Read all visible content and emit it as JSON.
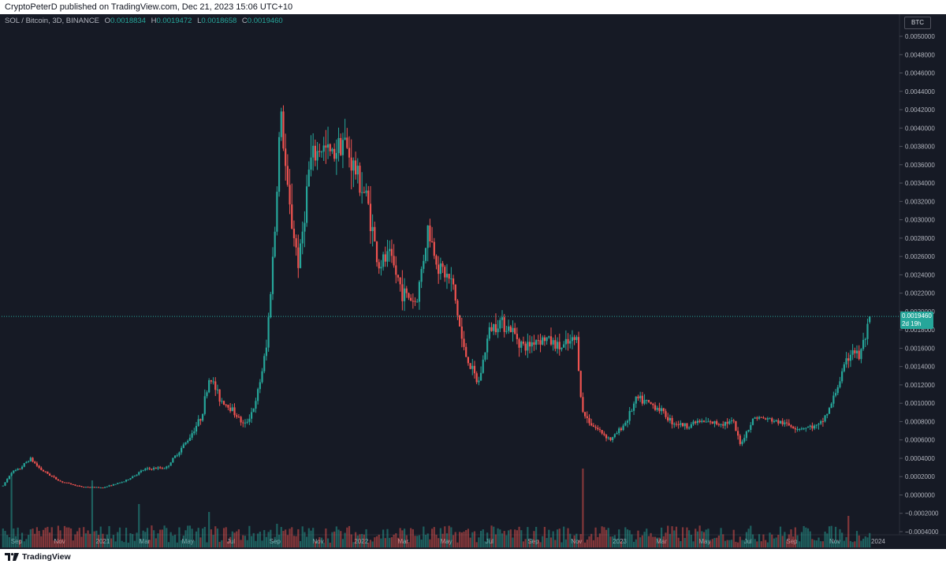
{
  "publisher_line": "CryptoPeterD published on TradingView.com, Dec 21, 2023 15:06 UTC+10",
  "legend": {
    "symbol": "SOL / Bitcoin, 3D, BINANCE",
    "open_label": "O",
    "open": "0.0018834",
    "high_label": "H",
    "high": "0.0019472",
    "low_label": "L",
    "low": "0.0018658",
    "close_label": "C",
    "close": "0.0019460"
  },
  "currency_label": "BTC",
  "price_tag": {
    "price": "0.0019460",
    "countdown": "2d 19h"
  },
  "footer_brand": "TradingView",
  "colors": {
    "up": "#26a69a",
    "down": "#ef5350",
    "background": "#161a25",
    "text": "#b2b5be"
  },
  "icons": {
    "brand": "tradingview-logo-icon"
  },
  "chart_data": {
    "type": "candlestick",
    "title": "SOL / Bitcoin, 3D, BINANCE",
    "y_ticks": [
      "0.0050000",
      "0.0048000",
      "0.0046000",
      "0.0044000",
      "0.0042000",
      "0.0040000",
      "0.0038000",
      "0.0036000",
      "0.0034000",
      "0.0032000",
      "0.0030000",
      "0.0028000",
      "0.0026000",
      "0.0024000",
      "0.0022000",
      "0.0020000",
      "0.0018000",
      "0.0016000",
      "0.0014000",
      "0.0012000",
      "0.0010000",
      "0.0008000",
      "0.0006000",
      "0.0004000",
      "0.0002000",
      "0.0000000",
      "−0.0002000",
      "−0.0004000"
    ],
    "y_tick_values": [
      0.005,
      0.0048,
      0.0046,
      0.0044,
      0.0042,
      0.004,
      0.0038,
      0.0036,
      0.0034,
      0.0032,
      0.003,
      0.0028,
      0.0026,
      0.0024,
      0.0022,
      0.002,
      0.0018,
      0.0016,
      0.0014,
      0.0012,
      0.001,
      0.0008,
      0.0006,
      0.0004,
      0.0002,
      0,
      -0.0002,
      -0.0004
    ],
    "ylim": [
      -0.0004,
      0.005
    ],
    "x_ticks": [
      "Sep",
      "Nov",
      "2021",
      "Mar",
      "May",
      "Jul",
      "Sep",
      "Nov",
      "2022",
      "Mar",
      "May",
      "Jul",
      "Sep",
      "Nov",
      "2023",
      "Mar",
      "May",
      "Jul",
      "Sep",
      "Nov",
      "2024"
    ],
    "x_tick_dates": [
      "2020-09-01",
      "2020-11-01",
      "2021-01-01",
      "2021-03-01",
      "2021-05-01",
      "2021-07-01",
      "2021-09-01",
      "2021-11-01",
      "2022-01-01",
      "2022-03-01",
      "2022-05-01",
      "2022-07-01",
      "2022-09-01",
      "2022-11-01",
      "2023-01-01",
      "2023-03-01",
      "2023-05-01",
      "2023-07-01",
      "2023-09-01",
      "2023-11-01",
      "2024-01-01"
    ],
    "price_keypoints": [
      [
        "2020-08-13",
        0.0001
      ],
      [
        "2020-08-25",
        0.00025
      ],
      [
        "2020-09-05",
        0.00028
      ],
      [
        "2020-09-20",
        0.0004
      ],
      [
        "2020-10-05",
        0.00028
      ],
      [
        "2020-11-01",
        0.00015
      ],
      [
        "2020-12-01",
        9e-05
      ],
      [
        "2021-01-01",
        8e-05
      ],
      [
        "2021-02-01",
        0.00015
      ],
      [
        "2021-03-01",
        0.00028
      ],
      [
        "2021-04-01",
        0.0003
      ],
      [
        "2021-05-01",
        0.0006
      ],
      [
        "2021-05-20",
        0.00085
      ],
      [
        "2021-06-01",
        0.0013
      ],
      [
        "2021-06-15",
        0.00105
      ],
      [
        "2021-07-01",
        0.00095
      ],
      [
        "2021-07-20",
        0.00075
      ],
      [
        "2021-08-05",
        0.001
      ],
      [
        "2021-08-20",
        0.0016
      ],
      [
        "2021-09-01",
        0.0029
      ],
      [
        "2021-09-09",
        0.0042
      ],
      [
        "2021-09-20",
        0.0032
      ],
      [
        "2021-10-05",
        0.0025
      ],
      [
        "2021-10-20",
        0.0036
      ],
      [
        "2021-11-05",
        0.0038
      ],
      [
        "2021-11-20",
        0.0037
      ],
      [
        "2021-12-05",
        0.0039
      ],
      [
        "2021-12-20",
        0.0036
      ],
      [
        "2022-01-10",
        0.0032
      ],
      [
        "2022-01-25",
        0.0025
      ],
      [
        "2022-02-10",
        0.0026
      ],
      [
        "2022-03-01",
        0.0022
      ],
      [
        "2022-03-20",
        0.0021
      ],
      [
        "2022-04-05",
        0.0029
      ],
      [
        "2022-04-20",
        0.0025
      ],
      [
        "2022-05-10",
        0.0023
      ],
      [
        "2022-05-25",
        0.0016
      ],
      [
        "2022-06-15",
        0.0012
      ],
      [
        "2022-07-01",
        0.0018
      ],
      [
        "2022-07-15",
        0.0019
      ],
      [
        "2022-08-01",
        0.0018
      ],
      [
        "2022-08-20",
        0.0016
      ],
      [
        "2022-09-05",
        0.0017
      ],
      [
        "2022-09-20",
        0.0017
      ],
      [
        "2022-10-10",
        0.0016
      ],
      [
        "2022-11-01",
        0.0017
      ],
      [
        "2022-11-09",
        0.0009
      ],
      [
        "2022-11-25",
        0.00075
      ],
      [
        "2022-12-20",
        0.0006
      ],
      [
        "2023-01-10",
        0.0008
      ],
      [
        "2023-01-25",
        0.00105
      ],
      [
        "2023-02-10",
        0.001
      ],
      [
        "2023-02-25",
        0.00095
      ],
      [
        "2023-03-15",
        0.0008
      ],
      [
        "2023-04-05",
        0.00075
      ],
      [
        "2023-04-20",
        0.0008
      ],
      [
        "2023-05-20",
        0.00078
      ],
      [
        "2023-06-10",
        0.0008
      ],
      [
        "2023-06-20",
        0.00055
      ],
      [
        "2023-07-10",
        0.00085
      ],
      [
        "2023-08-01",
        0.00082
      ],
      [
        "2023-08-20",
        0.00078
      ],
      [
        "2023-09-10",
        0.00073
      ],
      [
        "2023-10-10",
        0.00075
      ],
      [
        "2023-10-25",
        0.00095
      ],
      [
        "2023-11-10",
        0.0013
      ],
      [
        "2023-11-25",
        0.0016
      ],
      [
        "2023-12-05",
        0.0015
      ],
      [
        "2023-12-21",
        0.0019
      ]
    ],
    "volume_spikes": [
      [
        "2020-08-25",
        0.9
      ],
      [
        "2020-12-18",
        0.85
      ],
      [
        "2021-02-20",
        0.55
      ],
      [
        "2021-06-01",
        0.45
      ],
      [
        "2021-09-05",
        0.3
      ],
      [
        "2022-11-09",
        1.0
      ],
      [
        "2023-11-20",
        0.4
      ]
    ]
  }
}
